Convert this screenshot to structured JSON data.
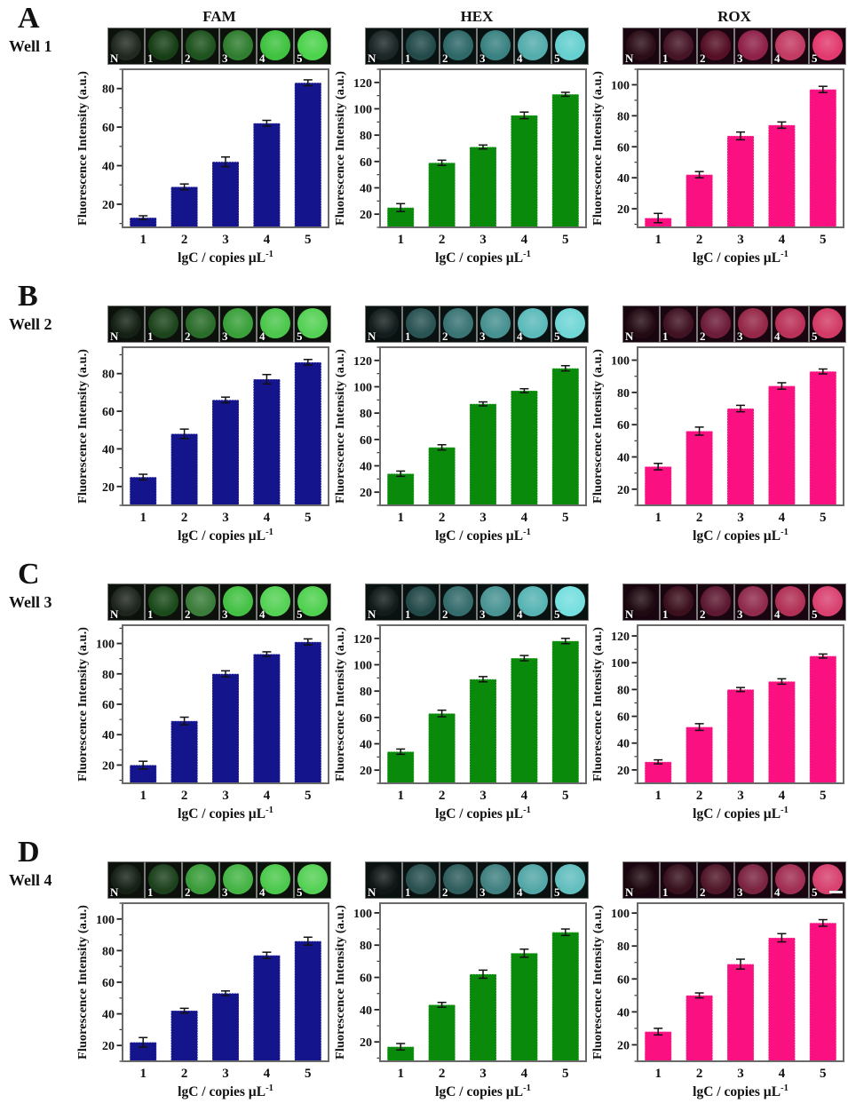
{
  "figure": {
    "panel_letters": [
      "A",
      "B",
      "C",
      "D"
    ],
    "well_names": [
      "Well 1",
      "Well 2",
      "Well 3",
      "Well 4"
    ],
    "column_titles": [
      "FAM",
      "HEX",
      "ROX"
    ],
    "well_labels": [
      "N",
      "1",
      "2",
      "3",
      "4",
      "5"
    ],
    "xlabel": "lgC / copies µL⁻¹",
    "ylabel": "Fluorescence Intensity (a.u.)",
    "bar_colors": {
      "FAM": "#14148C",
      "HEX": "#0A8A0A",
      "ROX": "#FA1080"
    },
    "frame_color": "#6a6a6a",
    "error_bar_color": "#111111"
  },
  "chart_data": [
    {
      "panel": "A",
      "well": "Well 1",
      "channel": "FAM",
      "type": "bar",
      "categories": [
        "1",
        "2",
        "3",
        "4",
        "5"
      ],
      "values": [
        13,
        29,
        42,
        62,
        83
      ],
      "errors": [
        1,
        1.5,
        2.5,
        1.5,
        1.5
      ],
      "yticks": [
        20,
        40,
        60,
        80
      ],
      "ylim": [
        8,
        90
      ],
      "xlabel": "lgC / copies µL⁻¹",
      "ylabel": "Fluorescence Intensity (a.u.)",
      "bar_color": "#14148C",
      "well_tile_bg": "#0c110c",
      "well_circle_colors": [
        "#202920",
        "#173f17",
        "#1e521e",
        "#2f7d2f",
        "#3fc23f",
        "#4cd34c"
      ],
      "scalebar_on_last": false
    },
    {
      "panel": "A",
      "well": "Well 1",
      "channel": "HEX",
      "type": "bar",
      "categories": [
        "1",
        "2",
        "3",
        "4",
        "5"
      ],
      "values": [
        25,
        59,
        71,
        95,
        111
      ],
      "errors": [
        3,
        2,
        1.5,
        2.5,
        1.5
      ],
      "yticks": [
        20,
        40,
        60,
        80,
        100,
        120
      ],
      "ylim": [
        10,
        130
      ],
      "xlabel": "lgC / copies µL⁻¹",
      "ylabel": "Fluorescence Intensity (a.u.)",
      "bar_color": "#0A8A0A",
      "well_tile_bg": "#0a1111",
      "well_circle_colors": [
        "#1c2626",
        "#234a4a",
        "#2f6868",
        "#3a8282",
        "#54acac",
        "#66cfcf"
      ],
      "scalebar_on_last": false
    },
    {
      "panel": "A",
      "well": "Well 1",
      "channel": "ROX",
      "type": "bar",
      "categories": [
        "1",
        "2",
        "3",
        "4",
        "5"
      ],
      "values": [
        14,
        42,
        67,
        74,
        97
      ],
      "errors": [
        3,
        2,
        2.5,
        2,
        2
      ],
      "yticks": [
        20,
        40,
        60,
        80,
        100
      ],
      "ylim": [
        8,
        110
      ],
      "xlabel": "lgC / copies µL⁻¹",
      "ylabel": "Fluorescence Intensity (a.u.)",
      "bar_color": "#FA1080",
      "well_tile_bg": "#190510",
      "well_circle_colors": [
        "#2b0d17",
        "#451526",
        "#551025",
        "#8f2148",
        "#c23b63",
        "#e23a6e"
      ],
      "scalebar_on_last": false
    },
    {
      "panel": "B",
      "well": "Well 2",
      "channel": "FAM",
      "type": "bar",
      "categories": [
        "1",
        "2",
        "3",
        "4",
        "5"
      ],
      "values": [
        25,
        48,
        66,
        77,
        86
      ],
      "errors": [
        1.5,
        2.5,
        1.5,
        2.5,
        1.5
      ],
      "yticks": [
        20,
        40,
        60,
        80
      ],
      "ylim": [
        10,
        94
      ],
      "xlabel": "lgC / copies µL⁻¹",
      "ylabel": "Fluorescence Intensity (a.u.)",
      "bar_color": "#14148C",
      "well_tile_bg": "#0c110c",
      "well_circle_colors": [
        "#152115",
        "#1d451d",
        "#2a6c2a",
        "#3aa03a",
        "#4cc74c",
        "#54d154"
      ],
      "scalebar_on_last": false
    },
    {
      "panel": "B",
      "well": "Well 2",
      "channel": "HEX",
      "type": "bar",
      "categories": [
        "1",
        "2",
        "3",
        "4",
        "5"
      ],
      "values": [
        34,
        54,
        87,
        97,
        114
      ],
      "errors": [
        2,
        2,
        1.5,
        1.5,
        2
      ],
      "yticks": [
        20,
        40,
        60,
        80,
        100,
        120
      ],
      "ylim": [
        10,
        130
      ],
      "xlabel": "lgC / copies µL⁻¹",
      "ylabel": "Fluorescence Intensity (a.u.)",
      "bar_color": "#0A8A0A",
      "well_tile_bg": "#0a1111",
      "well_circle_colors": [
        "#141d1d",
        "#2a5353",
        "#3a7474",
        "#479191",
        "#5cbaba",
        "#71d6d6"
      ],
      "scalebar_on_last": false
    },
    {
      "panel": "B",
      "well": "Well 2",
      "channel": "ROX",
      "type": "bar",
      "categories": [
        "1",
        "2",
        "3",
        "4",
        "5"
      ],
      "values": [
        34,
        56,
        70,
        84,
        93
      ],
      "errors": [
        2,
        2.5,
        2,
        2,
        1.5
      ],
      "yticks": [
        20,
        40,
        60,
        80,
        100
      ],
      "ylim": [
        10,
        108
      ],
      "xlabel": "lgC / copies µL⁻¹",
      "ylabel": "Fluorescence Intensity (a.u.)",
      "bar_color": "#FA1080",
      "well_tile_bg": "#190510",
      "well_circle_colors": [
        "#240b13",
        "#401222",
        "#6d1c39",
        "#952748",
        "#ba3159",
        "#d23b65"
      ],
      "scalebar_on_last": false
    },
    {
      "panel": "C",
      "well": "Well 3",
      "channel": "FAM",
      "type": "bar",
      "categories": [
        "1",
        "2",
        "3",
        "4",
        "5"
      ],
      "values": [
        20,
        49,
        80,
        93,
        101
      ],
      "errors": [
        2.5,
        2.5,
        2,
        1.5,
        2
      ],
      "yticks": [
        20,
        40,
        60,
        80,
        100
      ],
      "ylim": [
        8,
        112
      ],
      "xlabel": "lgC / copies µL⁻¹",
      "ylabel": "Fluorescence Intensity (a.u.)",
      "bar_color": "#14148C",
      "well_tile_bg": "#0c110c",
      "well_circle_colors": [
        "#1e241e",
        "#1b4b1b",
        "#3a7c3a",
        "#44c144",
        "#55d155",
        "#50d150"
      ],
      "scalebar_on_last": false
    },
    {
      "panel": "C",
      "well": "Well 3",
      "channel": "HEX",
      "type": "bar",
      "categories": [
        "1",
        "2",
        "3",
        "4",
        "5"
      ],
      "values": [
        34,
        63,
        89,
        105,
        118
      ],
      "errors": [
        2,
        2.5,
        2,
        2,
        2
      ],
      "yticks": [
        20,
        40,
        60,
        80,
        100,
        120
      ],
      "ylim": [
        10,
        130
      ],
      "xlabel": "lgC / copies µL⁻¹",
      "ylabel": "Fluorescence Intensity (a.u.)",
      "bar_color": "#0A8A0A",
      "well_tile_bg": "#0a1111",
      "well_circle_colors": [
        "#121a1a",
        "#244949",
        "#356c6c",
        "#4a9494",
        "#58b4b4",
        "#76dfdf"
      ],
      "scalebar_on_last": false
    },
    {
      "panel": "C",
      "well": "Well 3",
      "channel": "ROX",
      "type": "bar",
      "categories": [
        "1",
        "2",
        "3",
        "4",
        "5"
      ],
      "values": [
        26,
        52,
        80,
        86,
        105
      ],
      "errors": [
        1.5,
        2.5,
        1.5,
        2,
        1.5
      ],
      "yticks": [
        20,
        40,
        60,
        80,
        100,
        120
      ],
      "ylim": [
        10,
        128
      ],
      "xlabel": "lgC / copies µL⁻¹",
      "ylabel": "Fluorescence Intensity (a.u.)",
      "bar_color": "#FA1080",
      "well_tile_bg": "#190510",
      "well_circle_colors": [
        "#200a12",
        "#3b101d",
        "#5d1931",
        "#902b4d",
        "#b13156",
        "#d94171"
      ],
      "scalebar_on_last": false
    },
    {
      "panel": "D",
      "well": "Well 4",
      "channel": "FAM",
      "type": "bar",
      "categories": [
        "1",
        "2",
        "3",
        "4",
        "5"
      ],
      "values": [
        22,
        42,
        53,
        77,
        86
      ],
      "errors": [
        3,
        1.5,
        1.5,
        2,
        2.5
      ],
      "yticks": [
        20,
        40,
        60,
        80,
        100
      ],
      "ylim": [
        10,
        110
      ],
      "xlabel": "lgC / copies µL⁻¹",
      "ylabel": "Fluorescence Intensity (a.u.)",
      "bar_color": "#14148C",
      "well_tile_bg": "#0c110c",
      "well_circle_colors": [
        "#162116",
        "#1d411d",
        "#3a9c3a",
        "#45b445",
        "#4cc94c",
        "#55d155"
      ],
      "scalebar_on_last": false
    },
    {
      "panel": "D",
      "well": "Well 4",
      "channel": "HEX",
      "type": "bar",
      "categories": [
        "1",
        "2",
        "3",
        "4",
        "5"
      ],
      "values": [
        17,
        43,
        62,
        75,
        88
      ],
      "errors": [
        2,
        1.5,
        2.5,
        2.5,
        2
      ],
      "yticks": [
        20,
        40,
        60,
        80,
        100
      ],
      "ylim": [
        8,
        106
      ],
      "xlabel": "lgC / copies µL⁻¹",
      "ylabel": "Fluorescence Intensity (a.u.)",
      "bar_color": "#0A8A0A",
      "well_tile_bg": "#0a1111",
      "well_circle_colors": [
        "#101616",
        "#2a5050",
        "#305e5e",
        "#418181",
        "#54a7a7",
        "#63bebe"
      ],
      "scalebar_on_last": false
    },
    {
      "panel": "D",
      "well": "Well 4",
      "channel": "ROX",
      "type": "bar",
      "categories": [
        "1",
        "2",
        "3",
        "4",
        "5"
      ],
      "values": [
        28,
        50,
        69,
        85,
        94
      ],
      "errors": [
        2,
        1.5,
        3,
        2.5,
        2
      ],
      "yticks": [
        20,
        40,
        60,
        80,
        100
      ],
      "ylim": [
        10,
        106
      ],
      "xlabel": "lgC / copies µL⁻¹",
      "ylabel": "Fluorescence Intensity (a.u.)",
      "bar_color": "#FA1080",
      "well_tile_bg": "#190510",
      "well_circle_colors": [
        "#1f0911",
        "#37111d",
        "#501729",
        "#7b2441",
        "#a12f53",
        "#d7416f"
      ],
      "scalebar_on_last": true
    }
  ]
}
